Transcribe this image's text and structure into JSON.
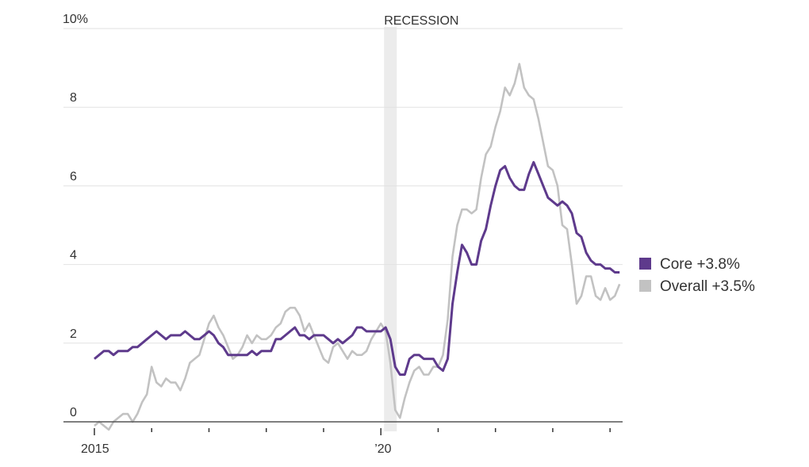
{
  "chart_data": {
    "type": "line",
    "title": "",
    "xlabel": "",
    "ylabel": "",
    "ylim": [
      0,
      10
    ],
    "y_ticks": [
      0,
      2,
      4,
      6,
      8,
      10
    ],
    "y_tick_labels": [
      "0",
      "2",
      "4",
      "6",
      "8",
      "10%"
    ],
    "x_start": "2015-01",
    "x_frequency": "monthly",
    "x_tick_years": [
      2015,
      2016,
      2017,
      2018,
      2019,
      2020,
      2021,
      2022,
      2023,
      2024
    ],
    "x_tick_labels": [
      {
        "year": 2015,
        "label": "2015"
      },
      {
        "year": 2020,
        "label": "’20"
      }
    ],
    "grid": true,
    "annotations": [
      {
        "type": "band",
        "label": "RECESSION",
        "from": "2020-02",
        "to": "2020-04",
        "color": "#ececec"
      }
    ],
    "legend_position": "right",
    "series": [
      {
        "name": "Core",
        "legend_label": "Core +3.8%",
        "color": "#5e3a8c",
        "values": [
          1.6,
          1.7,
          1.8,
          1.8,
          1.7,
          1.8,
          1.8,
          1.8,
          1.9,
          1.9,
          2.0,
          2.1,
          2.2,
          2.3,
          2.2,
          2.1,
          2.2,
          2.2,
          2.2,
          2.3,
          2.2,
          2.1,
          2.1,
          2.2,
          2.3,
          2.2,
          2.0,
          1.9,
          1.7,
          1.7,
          1.7,
          1.7,
          1.7,
          1.8,
          1.7,
          1.8,
          1.8,
          1.8,
          2.1,
          2.1,
          2.2,
          2.3,
          2.4,
          2.2,
          2.2,
          2.1,
          2.2,
          2.2,
          2.2,
          2.1,
          2.0,
          2.1,
          2.0,
          2.1,
          2.2,
          2.4,
          2.4,
          2.3,
          2.3,
          2.3,
          2.3,
          2.4,
          2.1,
          1.4,
          1.2,
          1.2,
          1.6,
          1.7,
          1.7,
          1.6,
          1.6,
          1.6,
          1.4,
          1.3,
          1.6,
          3.0,
          3.8,
          4.5,
          4.3,
          4.0,
          4.0,
          4.6,
          4.9,
          5.5,
          6.0,
          6.4,
          6.5,
          6.2,
          6.0,
          5.9,
          5.9,
          6.3,
          6.6,
          6.3,
          6.0,
          5.7,
          5.6,
          5.5,
          5.6,
          5.5,
          5.3,
          4.8,
          4.7,
          4.3,
          4.1,
          4.0,
          4.0,
          3.9,
          3.9,
          3.8,
          3.8
        ]
      },
      {
        "name": "Overall",
        "legend_label": "Overall +3.5%",
        "color": "#c2c2c2",
        "values": [
          -0.1,
          0.0,
          -0.1,
          -0.2,
          0.0,
          0.1,
          0.2,
          0.2,
          0.0,
          0.2,
          0.5,
          0.7,
          1.4,
          1.0,
          0.9,
          1.1,
          1.0,
          1.0,
          0.8,
          1.1,
          1.5,
          1.6,
          1.7,
          2.1,
          2.5,
          2.7,
          2.4,
          2.2,
          1.9,
          1.6,
          1.7,
          1.9,
          2.2,
          2.0,
          2.2,
          2.1,
          2.1,
          2.2,
          2.4,
          2.5,
          2.8,
          2.9,
          2.9,
          2.7,
          2.3,
          2.5,
          2.2,
          1.9,
          1.6,
          1.5,
          1.9,
          2.0,
          1.8,
          1.6,
          1.8,
          1.7,
          1.7,
          1.8,
          2.1,
          2.3,
          2.5,
          2.3,
          1.5,
          0.3,
          0.1,
          0.6,
          1.0,
          1.3,
          1.4,
          1.2,
          1.2,
          1.4,
          1.4,
          1.7,
          2.6,
          4.2,
          5.0,
          5.4,
          5.4,
          5.3,
          5.4,
          6.2,
          6.8,
          7.0,
          7.5,
          7.9,
          8.5,
          8.3,
          8.6,
          9.1,
          8.5,
          8.3,
          8.2,
          7.7,
          7.1,
          6.5,
          6.4,
          6.0,
          5.0,
          4.9,
          4.0,
          3.0,
          3.2,
          3.7,
          3.7,
          3.2,
          3.1,
          3.4,
          3.1,
          3.2,
          3.5
        ]
      }
    ]
  }
}
